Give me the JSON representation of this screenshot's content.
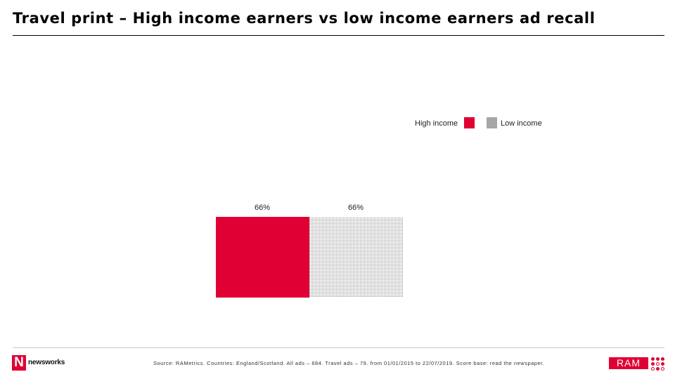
{
  "title": "Travel print – High income earners vs low income earners ad recall",
  "colors": {
    "accent": "#e00034",
    "pattern_dot": "#8a8a8a"
  },
  "chart_data": {
    "type": "bar",
    "categories": [
      "High income",
      "Low income"
    ],
    "values": [
      66,
      66
    ],
    "data_labels": [
      "66%",
      "66%"
    ],
    "legend": [
      {
        "label": "High income",
        "fill": "solid",
        "color": "#e00034"
      },
      {
        "label": "Low income",
        "fill": "dotted-pattern",
        "color": "#8a8a8a"
      }
    ],
    "legend_position": "top-right",
    "title": "",
    "xlabel": "",
    "ylabel": "",
    "ylim": [
      0,
      100
    ],
    "grid": false,
    "axes_visible": false
  },
  "footer": {
    "source": "Source: RAMetrics. Countries: England/Scotland. All ads – 684. Travel ads – 79. from 01/01/2015 to 22/07/2019. Score base: read the newspaper."
  },
  "logos": {
    "left": {
      "mark": "N",
      "text": "newsworks"
    },
    "right": {
      "text": "RAM"
    }
  }
}
